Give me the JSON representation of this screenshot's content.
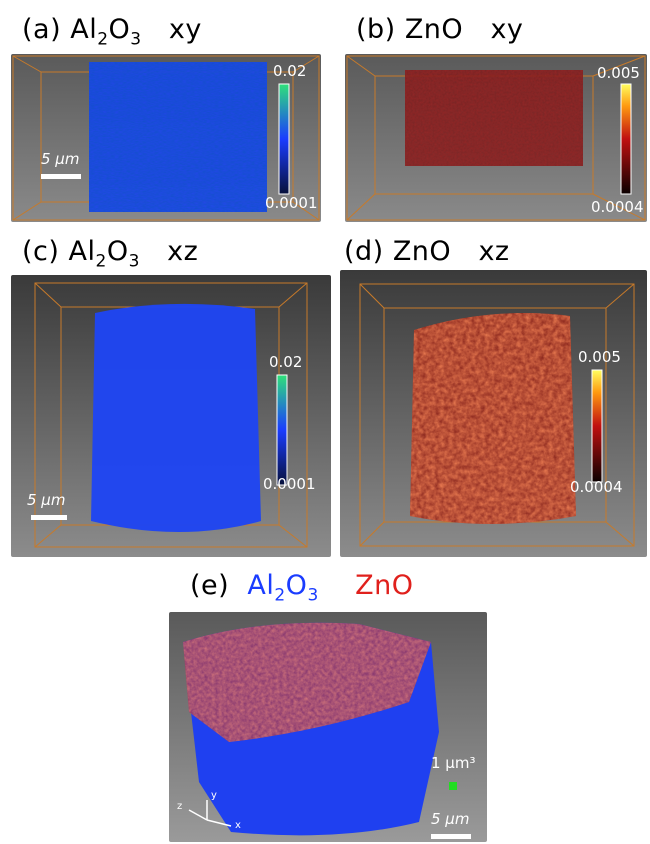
{
  "panels": {
    "a": {
      "label": "(a)",
      "material": "Al",
      "sub1": "2",
      "mid": "O",
      "sub2": "3",
      "plane": "xy",
      "cb_max": "0.02",
      "cb_min": "0.0001",
      "scalebar": "5 μm"
    },
    "b": {
      "label": "(b)",
      "material": "ZnO",
      "plane": "xy",
      "cb_max": "0.005",
      "cb_min": "0.0004"
    },
    "c": {
      "label": "(c)",
      "material": "Al",
      "sub1": "2",
      "mid": "O",
      "sub2": "3",
      "plane": "xz",
      "cb_max": "0.02",
      "cb_min": "0.0001",
      "scalebar": "5 μm"
    },
    "d": {
      "label": "(d)",
      "material": "ZnO",
      "plane": "xz",
      "cb_max": "0.005",
      "cb_min": "0.0004"
    },
    "e": {
      "label": "(e)",
      "al": "Al",
      "al_sub1": "2",
      "al_mid": "O",
      "al_sub2": "3",
      "zno": "ZnO",
      "voxel_label": "1 μm³",
      "scalebar": "5 μm",
      "axes": {
        "z": "z",
        "y": "y",
        "x": "x"
      }
    }
  },
  "colors": {
    "al2o3": "#1a3cff",
    "zno": "#e0201c",
    "frame": "#c77a2a"
  }
}
